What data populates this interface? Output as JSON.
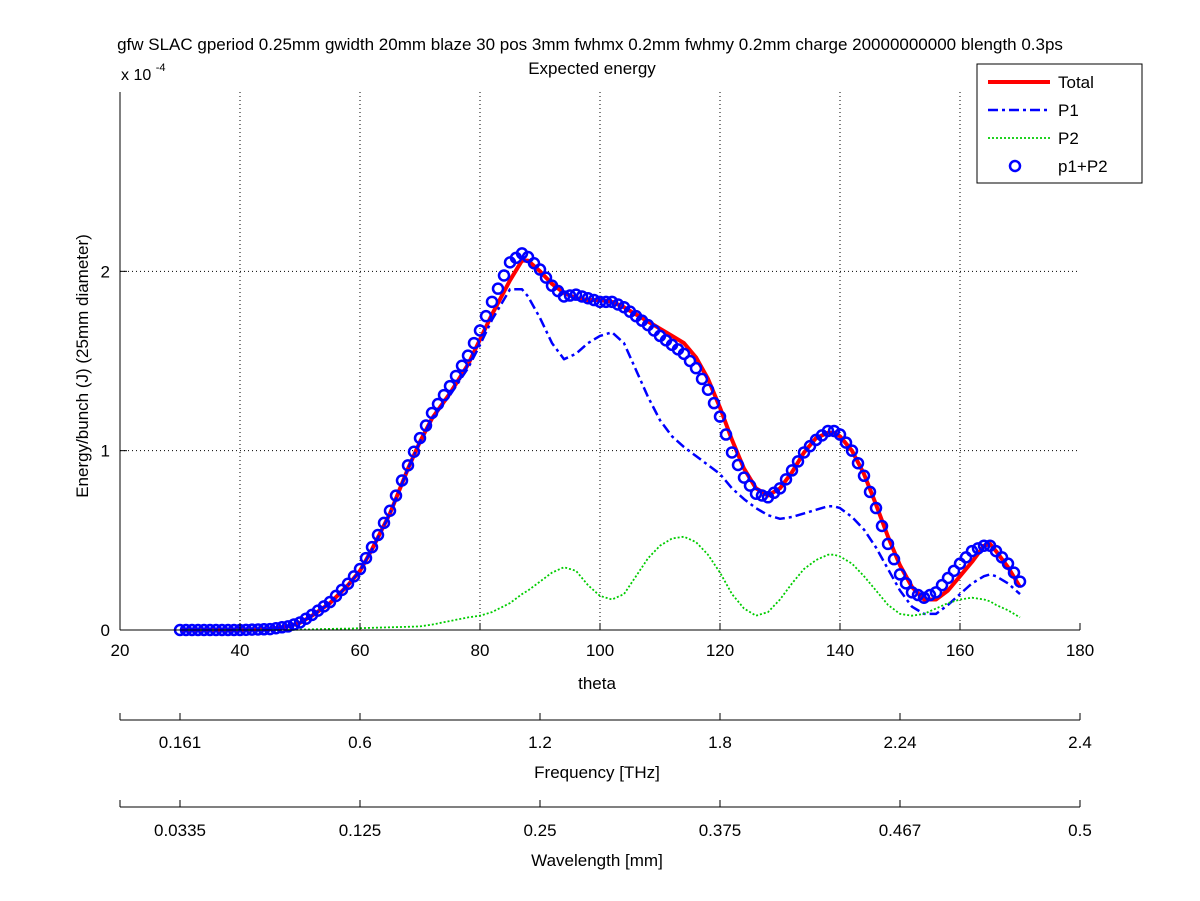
{
  "chart_data": {
    "type": "line",
    "title": "gfw SLAC gperiod 0.25mm gwidth 20mm blaze 30 pos 3mm fwhmx 0.2mm fwhmy 0.2mm charge 20000000000 blength 0.3ps",
    "subtitle": "Expected energy",
    "xlabel": "theta",
    "ylabel": "Energy/bunch (J) (25mm diameter)",
    "y_multiplier_base": "x 10",
    "y_multiplier_exp": "-4",
    "xlim": [
      20,
      180
    ],
    "ylim": [
      0,
      3
    ],
    "xticks": [
      20,
      40,
      60,
      80,
      100,
      120,
      140,
      160,
      180
    ],
    "xtick_labels": [
      "20",
      "40",
      "60",
      "80",
      "100",
      "120",
      "140",
      "160",
      "180"
    ],
    "yticks": [
      0,
      1,
      2
    ],
    "ytick_labels": [
      "0",
      "1",
      "2"
    ],
    "grid": true,
    "legend_position": "top-right",
    "x": [
      30,
      35,
      40,
      45,
      48,
      50,
      52,
      55,
      58,
      60,
      62,
      65,
      68,
      70,
      72,
      75,
      78,
      80,
      82,
      85,
      87,
      88,
      90,
      92,
      94,
      96,
      98,
      100,
      102,
      104,
      106,
      108,
      110,
      112,
      114,
      116,
      118,
      120,
      122,
      124,
      126,
      128,
      130,
      132,
      134,
      136,
      138,
      139,
      140,
      142,
      144,
      146,
      148,
      150,
      152,
      154,
      156,
      158,
      160,
      162,
      164,
      165,
      166,
      168,
      170
    ],
    "series": [
      {
        "name": "Total",
        "color": "#ff0000",
        "style": "solid",
        "values": [
          0,
          0,
          0,
          0.005,
          0.02,
          0.04,
          0.08,
          0.15,
          0.25,
          0.33,
          0.45,
          0.65,
          0.9,
          1.05,
          1.18,
          1.32,
          1.48,
          1.62,
          1.76,
          1.95,
          2.06,
          2.06,
          2.0,
          1.93,
          1.88,
          1.85,
          1.84,
          1.84,
          1.83,
          1.8,
          1.76,
          1.72,
          1.68,
          1.64,
          1.6,
          1.52,
          1.4,
          1.24,
          1.06,
          0.9,
          0.79,
          0.75,
          0.79,
          0.88,
          0.99,
          1.07,
          1.1,
          1.1,
          1.08,
          1.0,
          0.87,
          0.7,
          0.52,
          0.36,
          0.24,
          0.17,
          0.17,
          0.22,
          0.3,
          0.38,
          0.47,
          0.48,
          0.44,
          0.35,
          0.24
        ]
      },
      {
        "name": "P1",
        "color": "#0000ff",
        "style": "dashdot",
        "values": [
          0,
          0,
          0,
          0.005,
          0.02,
          0.04,
          0.08,
          0.15,
          0.25,
          0.33,
          0.45,
          0.65,
          0.9,
          1.05,
          1.18,
          1.31,
          1.46,
          1.59,
          1.73,
          1.9,
          1.9,
          1.86,
          1.74,
          1.6,
          1.51,
          1.54,
          1.6,
          1.64,
          1.66,
          1.6,
          1.45,
          1.3,
          1.17,
          1.08,
          1.02,
          0.97,
          0.92,
          0.87,
          0.79,
          0.73,
          0.68,
          0.64,
          0.62,
          0.63,
          0.65,
          0.67,
          0.69,
          0.69,
          0.68,
          0.63,
          0.56,
          0.46,
          0.34,
          0.22,
          0.13,
          0.09,
          0.09,
          0.14,
          0.2,
          0.26,
          0.3,
          0.31,
          0.3,
          0.26,
          0.2
        ]
      },
      {
        "name": "P2",
        "color": "#00cc00",
        "style": "dotted",
        "values": [
          0,
          0,
          0,
          0,
          0,
          0.002,
          0.004,
          0.006,
          0.008,
          0.01,
          0.012,
          0.015,
          0.018,
          0.02,
          0.03,
          0.05,
          0.07,
          0.08,
          0.1,
          0.15,
          0.2,
          0.22,
          0.27,
          0.32,
          0.35,
          0.33,
          0.25,
          0.19,
          0.17,
          0.2,
          0.3,
          0.4,
          0.47,
          0.51,
          0.52,
          0.49,
          0.42,
          0.32,
          0.2,
          0.12,
          0.08,
          0.1,
          0.17,
          0.26,
          0.34,
          0.39,
          0.42,
          0.42,
          0.41,
          0.37,
          0.3,
          0.22,
          0.14,
          0.09,
          0.08,
          0.09,
          0.12,
          0.15,
          0.17,
          0.18,
          0.17,
          0.16,
          0.14,
          0.11,
          0.07
        ]
      },
      {
        "name": "p1+P2",
        "color": "#0000ff",
        "style": "markers-circle",
        "values": [
          0,
          0,
          0,
          0.005,
          0.02,
          0.042,
          0.084,
          0.156,
          0.258,
          0.34,
          0.462,
          0.665,
          0.918,
          1.07,
          1.21,
          1.36,
          1.53,
          1.67,
          1.83,
          2.05,
          2.1,
          2.08,
          2.01,
          1.92,
          1.86,
          1.87,
          1.85,
          1.83,
          1.83,
          1.8,
          1.75,
          1.7,
          1.64,
          1.59,
          1.54,
          1.46,
          1.34,
          1.19,
          0.99,
          0.85,
          0.76,
          0.74,
          0.79,
          0.89,
          0.99,
          1.06,
          1.11,
          1.11,
          1.09,
          1.0,
          0.86,
          0.68,
          0.48,
          0.31,
          0.21,
          0.18,
          0.21,
          0.29,
          0.37,
          0.44,
          0.47,
          0.47,
          0.44,
          0.37,
          0.27
        ]
      }
    ],
    "secondary_axes": [
      {
        "label": "Frequency [THz]",
        "ticks": [
          "0.161",
          "0.6",
          "1.2",
          "1.8",
          "2.24",
          "2.4"
        ]
      },
      {
        "label": "Wavelength [mm]",
        "ticks": [
          "0.0335",
          "0.125",
          "0.25",
          "0.375",
          "0.467",
          "0.5"
        ]
      }
    ]
  }
}
